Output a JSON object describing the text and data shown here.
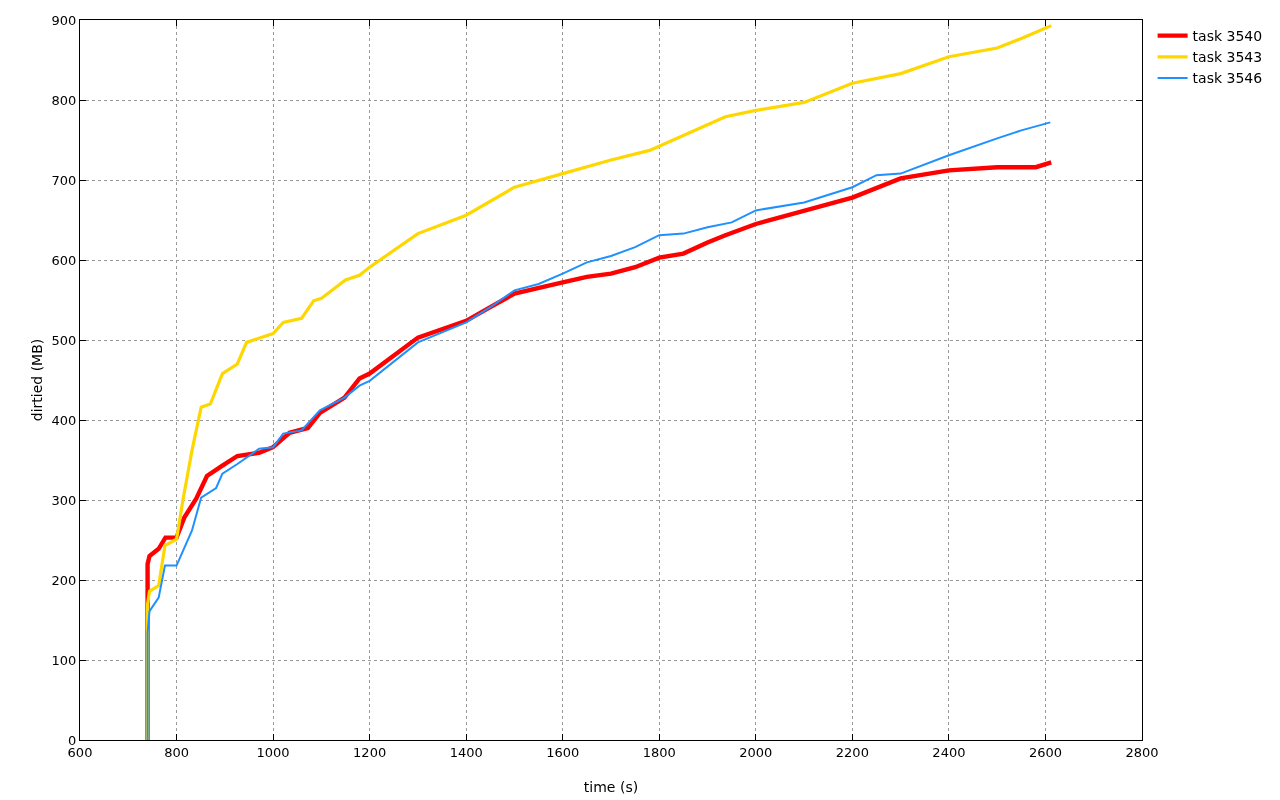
{
  "chart_data": {
    "type": "line",
    "xlabel": "time (s)",
    "ylabel": "dirtied (MB)",
    "xlim": [
      600,
      2800
    ],
    "ylim": [
      0,
      900
    ],
    "xticks": [
      600,
      800,
      1000,
      1200,
      1400,
      1600,
      1800,
      2000,
      2200,
      2400,
      2600,
      2800
    ],
    "yticks": [
      0,
      100,
      200,
      300,
      400,
      500,
      600,
      700,
      800,
      900
    ],
    "grid": true,
    "legend": "top right",
    "marker": "none",
    "line_style": "solid",
    "series": [
      {
        "name": "task 3540",
        "color": "#ff0000",
        "x": [
          740,
          740,
          744,
          763,
          777,
          800,
          816,
          841,
          863,
          895,
          926,
          971,
          1000,
          1034,
          1072,
          1097,
          1148,
          1179,
          1200,
          1300,
          1400,
          1450,
          1500,
          1600,
          1650,
          1700,
          1750,
          1800,
          1850,
          1900,
          1937,
          2000,
          2200,
          2300,
          2400,
          2500,
          2580,
          2612
        ],
        "values": [
          0,
          220,
          230,
          239,
          253,
          253,
          278,
          302,
          330,
          343,
          355,
          359,
          366,
          384,
          390,
          409,
          428,
          452,
          458,
          503,
          524,
          541,
          558,
          572,
          579,
          583,
          591,
          603,
          608,
          622,
          631,
          645,
          678,
          702,
          712,
          716,
          716,
          722
        ]
      },
      {
        "name": "task 3543",
        "color": "#ffd700",
        "x": [
          740,
          740,
          744,
          763,
          776,
          800,
          813,
          832,
          851,
          870,
          895,
          926,
          945,
          1000,
          1021,
          1059,
          1084,
          1100,
          1150,
          1179,
          1200,
          1300,
          1400,
          1500,
          1600,
          1700,
          1780,
          1937,
          2000,
          2100,
          2200,
          2300,
          2400,
          2500,
          2550,
          2612
        ],
        "values": [
          0,
          170,
          186,
          193,
          243,
          251,
          299,
          362,
          416,
          420,
          458,
          470,
          497,
          508,
          522,
          527,
          549,
          552,
          575,
          581,
          591,
          633,
          656,
          691,
          708,
          725,
          737,
          779,
          787,
          797,
          821,
          833,
          854,
          865,
          877,
          893
        ]
      },
      {
        "name": "task 3546",
        "color": "#1e90ff",
        "x": [
          740,
          740,
          744,
          763,
          776,
          800,
          832,
          851,
          882,
          895,
          926,
          971,
          1000,
          1021,
          1059,
          1097,
          1148,
          1179,
          1200,
          1300,
          1400,
          1450,
          1500,
          1550,
          1600,
          1650,
          1700,
          1750,
          1800,
          1850,
          1900,
          1950,
          2000,
          2100,
          2200,
          2250,
          2300,
          2400,
          2500,
          2550,
          2610
        ],
        "values": [
          0,
          134,
          161,
          178,
          218,
          218,
          262,
          303,
          315,
          333,
          345,
          364,
          366,
          383,
          387,
          412,
          428,
          443,
          449,
          497,
          522,
          541,
          562,
          570,
          583,
          597,
          605,
          616,
          631,
          633,
          641,
          647,
          662,
          672,
          691,
          706,
          708,
          731,
          752,
          762,
          772
        ]
      }
    ]
  }
}
